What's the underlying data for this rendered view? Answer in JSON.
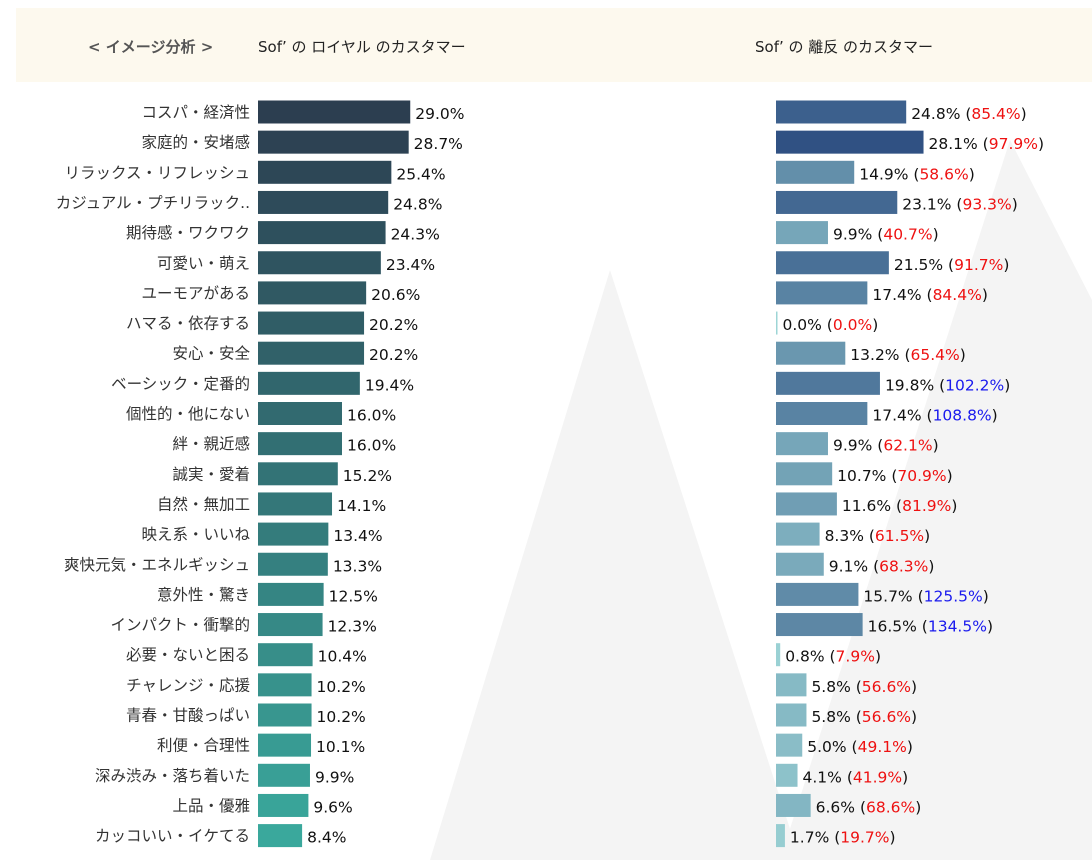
{
  "header": {
    "analysis_label": "< イメージ分析 >",
    "loyal_title": "Sof’ の ロイヤル のカスタマー",
    "churn_title": "Sof’ の 離反 のカスタマー"
  },
  "colors": {
    "over_100": "#1a1aee",
    "under_100": "#ee1111",
    "header_bg": "#fdf9ee"
  },
  "chart_data": [
    {
      "type": "bar",
      "title": "Sof’ の ロイヤル のカスタマー",
      "orientation": "horizontal",
      "categories": [
        "コスパ・経済性",
        "家庭的・安堵感",
        "リラックス・リフレッシュ",
        "カジュアル・プチリラック..",
        "期待感・ワクワク",
        "可愛い・萌え",
        "ユーモアがある",
        "ハマる・依存する",
        "安心・安全",
        "ベーシック・定番的",
        "個性的・他にない",
        "絆・親近感",
        "誠実・愛着",
        "自然・無加工",
        "映え系・いいね",
        "爽快元気・エネルギッシュ",
        "意外性・驚き",
        "インパクト・衝撃的",
        "必要・ないと困る",
        "チャレンジ・応援",
        "青春・甘酸っぱい",
        "利便・合理性",
        "深み渋み・落ち着いた",
        "上品・優雅",
        "カッコいい・イケてる"
      ],
      "values": [
        29.0,
        28.7,
        25.4,
        24.8,
        24.3,
        23.4,
        20.6,
        20.2,
        20.2,
        19.4,
        16.0,
        16.0,
        15.2,
        14.1,
        13.4,
        13.3,
        12.5,
        12.3,
        10.4,
        10.2,
        10.2,
        10.1,
        9.9,
        9.6,
        8.4
      ],
      "labels": [
        "29.0%",
        "28.7%",
        "25.4%",
        "24.8%",
        "24.3%",
        "23.4%",
        "20.6%",
        "20.2%",
        "20.2%",
        "19.4%",
        "16.0%",
        "16.0%",
        "15.2%",
        "14.1%",
        "13.4%",
        "13.3%",
        "12.5%",
        "12.3%",
        "10.4%",
        "10.2%",
        "10.2%",
        "10.1%",
        "9.9%",
        "9.6%",
        "8.4%"
      ]
    },
    {
      "type": "bar",
      "title": "Sof’ の 離反 のカスタマー",
      "orientation": "horizontal",
      "categories": [
        "コスパ・経済性",
        "家庭的・安堵感",
        "リラックス・リフレッシュ",
        "カジュアル・プチリラック..",
        "期待感・ワクワク",
        "可愛い・萌え",
        "ユーモアがある",
        "ハマる・依存する",
        "安心・安全",
        "ベーシック・定番的",
        "個性的・他にない",
        "絆・親近感",
        "誠実・愛着",
        "自然・無加工",
        "映え系・いいね",
        "爽快元気・エネルギッシュ",
        "意外性・驚き",
        "インパクト・衝撃的",
        "必要・ないと困る",
        "チャレンジ・応援",
        "青春・甘酸っぱい",
        "利便・合理性",
        "深み渋み・落ち着いた",
        "上品・優雅",
        "カッコいい・イケてる"
      ],
      "values": [
        24.8,
        28.1,
        14.9,
        23.1,
        9.9,
        21.5,
        17.4,
        0.0,
        13.2,
        19.8,
        17.4,
        9.9,
        10.7,
        11.6,
        8.3,
        9.1,
        15.7,
        16.5,
        0.8,
        5.8,
        5.8,
        5.0,
        4.1,
        6.6,
        1.7
      ],
      "labels": [
        "24.8%",
        "28.1%",
        "14.9%",
        "23.1%",
        "9.9%",
        "21.5%",
        "17.4%",
        "0.0%",
        "13.2%",
        "19.8%",
        "17.4%",
        "9.9%",
        "10.7%",
        "11.6%",
        "8.3%",
        "9.1%",
        "15.7%",
        "16.5%",
        "0.8%",
        "5.8%",
        "5.8%",
        "5.0%",
        "4.1%",
        "6.6%",
        "1.7%"
      ],
      "ratio_values": [
        85.4,
        97.9,
        58.6,
        93.3,
        40.7,
        91.7,
        84.4,
        0.0,
        65.4,
        102.2,
        108.8,
        62.1,
        70.9,
        81.9,
        61.5,
        68.3,
        125.5,
        134.5,
        7.9,
        56.6,
        56.6,
        49.1,
        41.9,
        68.6,
        19.7
      ],
      "ratio_labels": [
        "85.4%",
        "97.9%",
        "58.6%",
        "93.3%",
        "40.7%",
        "91.7%",
        "84.4%",
        "0.0%",
        "65.4%",
        "102.2%",
        "108.8%",
        "62.1%",
        "70.9%",
        "81.9%",
        "61.5%",
        "68.3%",
        "125.5%",
        "134.5%",
        "7.9%",
        "56.6%",
        "56.6%",
        "49.1%",
        "41.9%",
        "68.6%",
        "19.7%"
      ]
    }
  ]
}
